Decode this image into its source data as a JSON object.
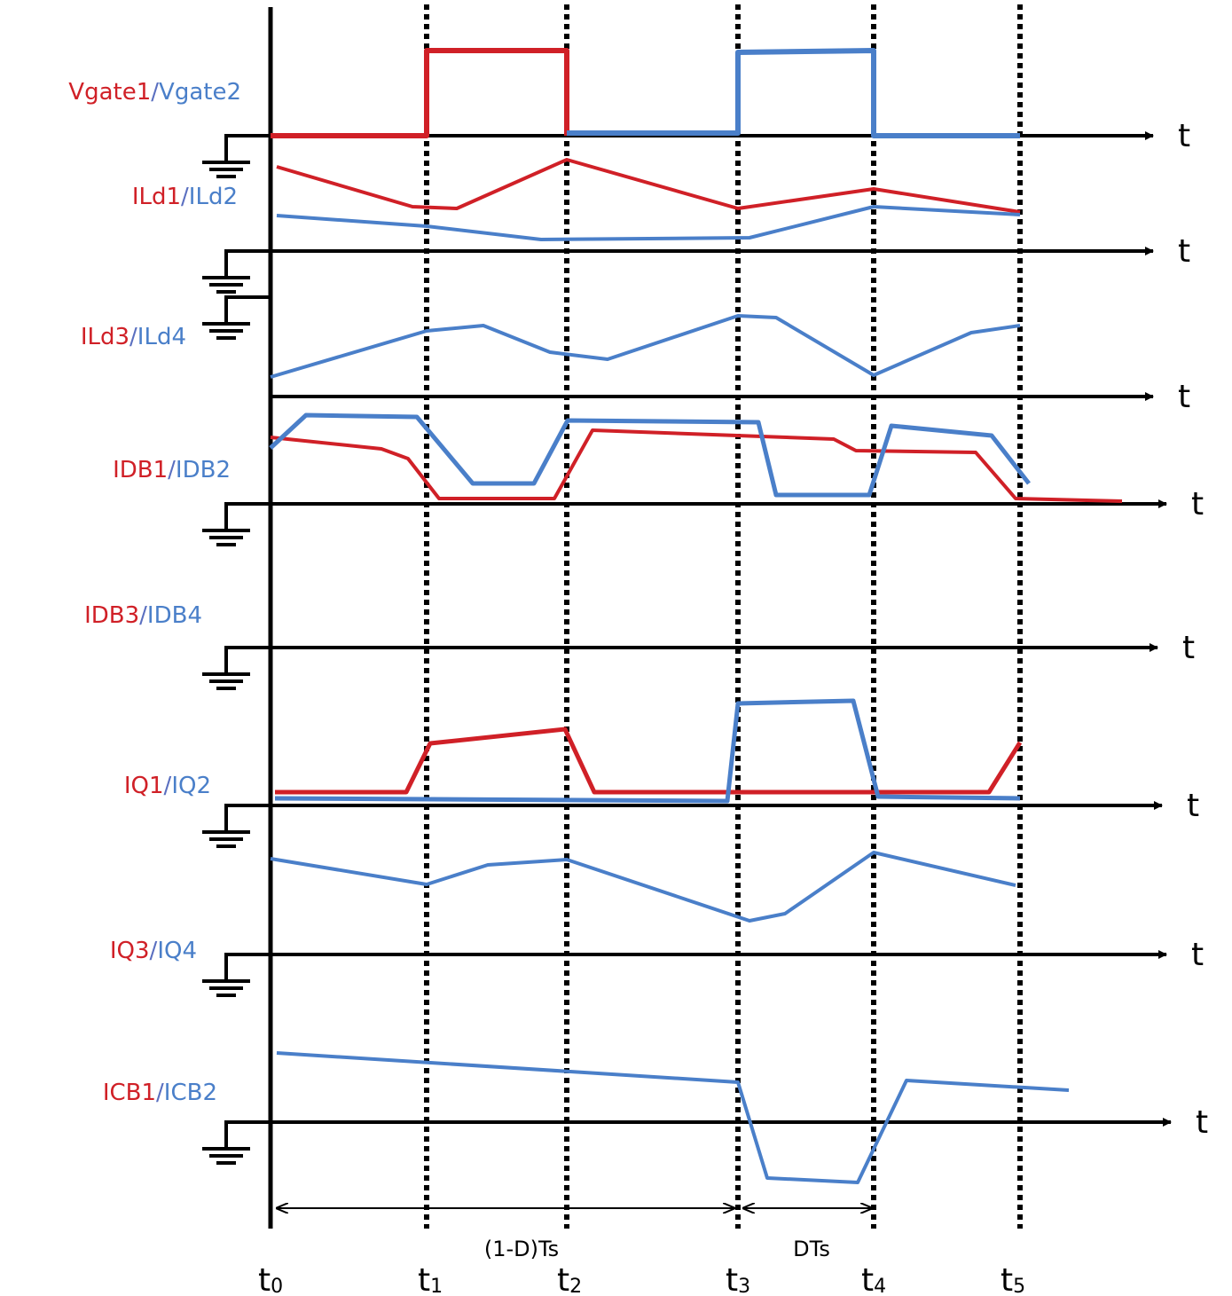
{
  "colors": {
    "red": "#d02027",
    "blue": "#4a7fc9",
    "axis": "#000000"
  },
  "axis_label": "t",
  "signals": [
    {
      "red": "Vgate1",
      "blue": "Vgate2"
    },
    {
      "red": "ILd1",
      "blue": "ILd2"
    },
    {
      "red": "ILd3",
      "blue": "ILd4"
    },
    {
      "red": "IDB1",
      "blue": "IDB2"
    },
    {
      "red": "IDB3",
      "blue": "IDB4"
    },
    {
      "red": "IQ1",
      "blue": "IQ2"
    },
    {
      "red": "IQ3",
      "blue": "IQ4"
    },
    {
      "red": "ICB1",
      "blue": "ICB2"
    }
  ],
  "separator": "/",
  "time_marks": [
    {
      "base": "t",
      "sub": "0"
    },
    {
      "base": "t",
      "sub": "1"
    },
    {
      "base": "t",
      "sub": "2"
    },
    {
      "base": "t",
      "sub": "3"
    },
    {
      "base": "t",
      "sub": "4"
    },
    {
      "base": "t",
      "sub": "5"
    }
  ],
  "intervals": {
    "off": "(1-D)Ts",
    "on": "DTs"
  }
}
